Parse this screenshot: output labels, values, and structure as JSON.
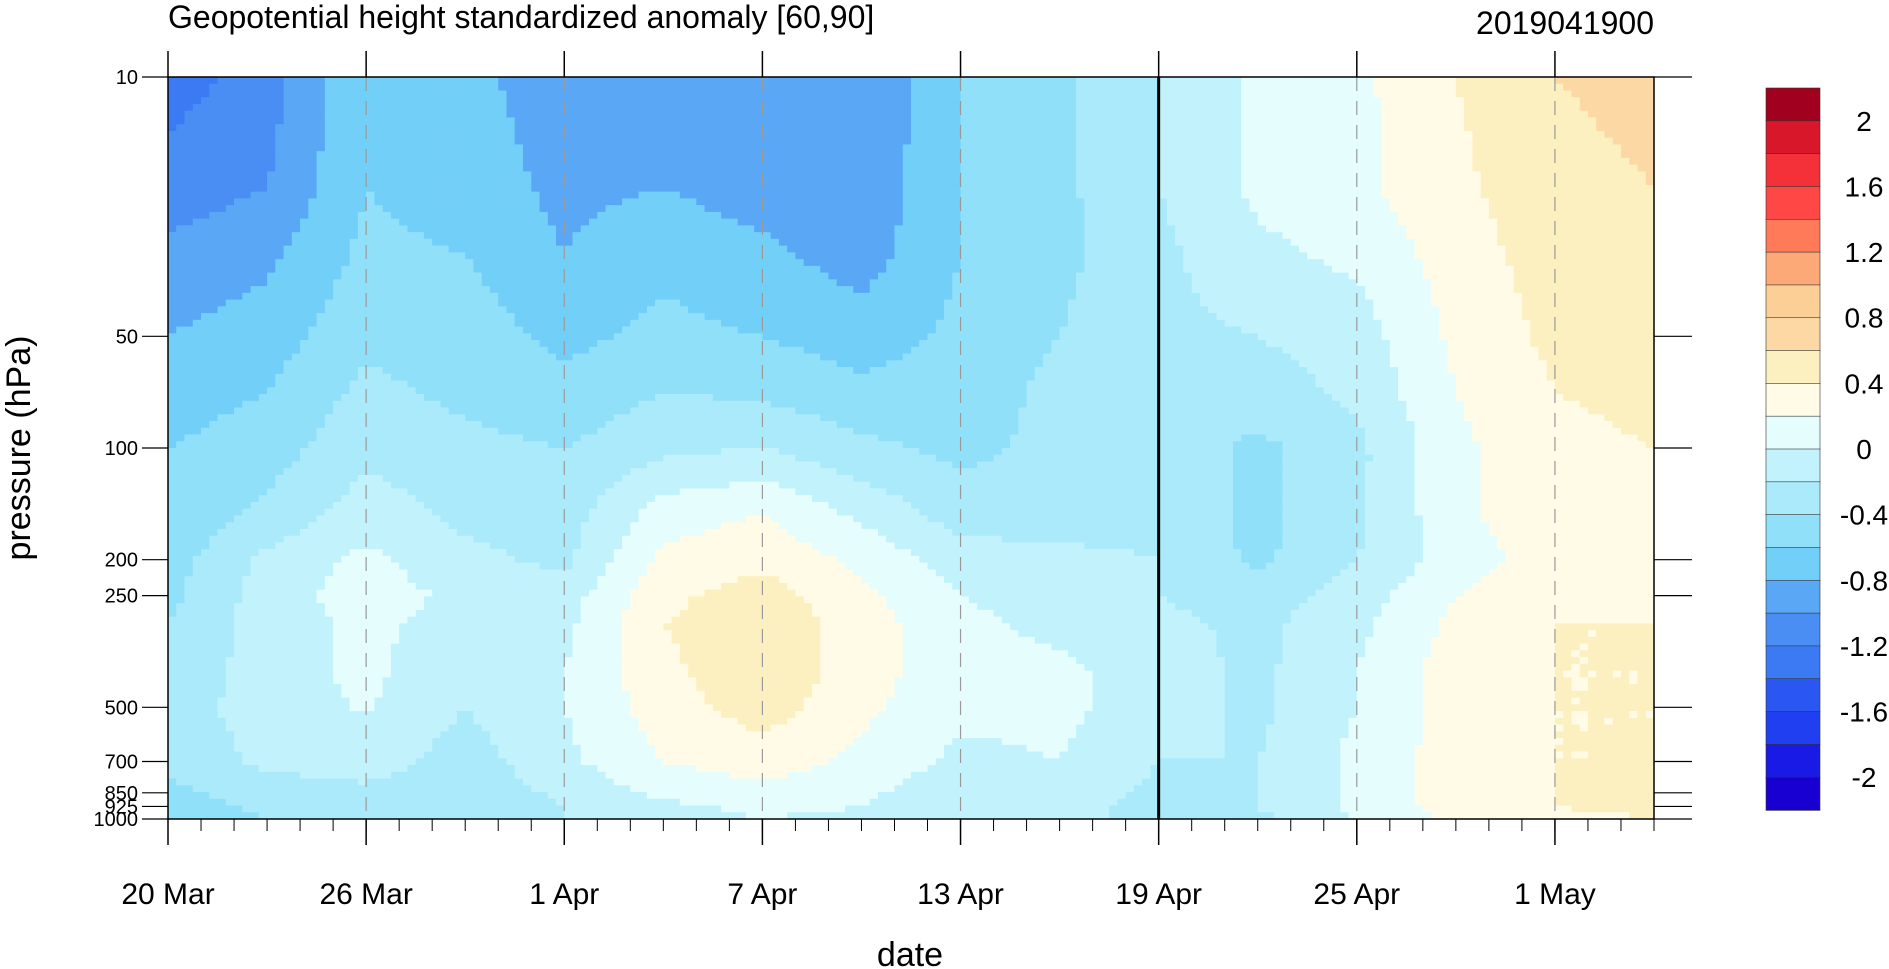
{
  "chart_data": {
    "type": "heatmap",
    "title": "Geopotential height standardized anomaly [60,90]",
    "subtitle": "2019041900",
    "xlabel": "date",
    "ylabel": "pressure (hPa)",
    "y_scale": "log",
    "y_reversed": true,
    "ylim": [
      1000,
      10
    ],
    "xlim": [
      "2019-03-20",
      "2019-05-04"
    ],
    "x_tick_labels": [
      "20 Mar",
      "26 Mar",
      "1 Apr",
      "7 Apr",
      "13 Apr",
      "19 Apr",
      "25 Apr",
      "1 May"
    ],
    "x_tick_dates": [
      "2019-03-20",
      "2019-03-26",
      "2019-04-01",
      "2019-04-07",
      "2019-04-13",
      "2019-04-19",
      "2019-04-25",
      "2019-05-01"
    ],
    "y_ticks": [
      10,
      50,
      100,
      200,
      250,
      500,
      700,
      850,
      925,
      1000
    ],
    "y_tick_labels": [
      "10",
      "50",
      "100",
      "200",
      "250",
      "500",
      "700",
      "850",
      "925",
      "1000"
    ],
    "analysis_date": "2019-04-19",
    "dashed_gridlines_x": [
      "2019-03-26",
      "2019-04-01",
      "2019-04-07",
      "2019-04-13",
      "2019-04-25",
      "2019-05-01"
    ],
    "pressure_levels": [
      10,
      20,
      30,
      50,
      70,
      100,
      150,
      200,
      250,
      300,
      400,
      500,
      700,
      850,
      925,
      1000
    ],
    "dates": [
      "2019-03-20",
      "2019-03-23",
      "2019-03-26",
      "2019-03-29",
      "2019-04-01",
      "2019-04-04",
      "2019-04-07",
      "2019-04-10",
      "2019-04-13",
      "2019-04-16",
      "2019-04-19",
      "2019-04-22",
      "2019-04-25",
      "2019-04-28",
      "2019-05-01",
      "2019-05-04"
    ],
    "values": [
      [
        -1.3,
        -1.1,
        -0.6,
        -0.75,
        -0.9,
        -0.85,
        -0.9,
        -1.0,
        -0.6,
        -0.45,
        -0.2,
        0.05,
        0.15,
        0.4,
        0.6,
        0.65
      ],
      [
        -1.1,
        -1.0,
        -0.6,
        -0.7,
        -0.85,
        -0.8,
        -0.9,
        -0.95,
        -0.6,
        -0.45,
        -0.2,
        0.05,
        0.15,
        0.35,
        0.55,
        0.6
      ],
      [
        -0.95,
        -0.85,
        -0.55,
        -0.6,
        -0.8,
        -0.65,
        -0.75,
        -0.9,
        -0.6,
        -0.45,
        -0.25,
        -0.05,
        0.05,
        0.3,
        0.5,
        0.6
      ],
      [
        -0.8,
        -0.7,
        -0.45,
        -0.5,
        -0.65,
        -0.55,
        -0.6,
        -0.7,
        -0.55,
        -0.4,
        -0.25,
        -0.2,
        -0.1,
        0.25,
        0.45,
        0.6
      ],
      [
        -0.7,
        -0.6,
        -0.35,
        -0.45,
        -0.55,
        -0.4,
        -0.45,
        -0.55,
        -0.5,
        -0.35,
        -0.25,
        -0.3,
        -0.15,
        0.2,
        0.4,
        0.45
      ],
      [
        -0.6,
        -0.5,
        -0.25,
        -0.35,
        -0.4,
        -0.25,
        -0.2,
        -0.35,
        -0.45,
        -0.35,
        -0.25,
        -0.45,
        -0.25,
        0.15,
        0.35,
        0.4
      ],
      [
        -0.55,
        -0.35,
        -0.1,
        -0.25,
        -0.3,
        0.1,
        0.2,
        -0.05,
        -0.3,
        -0.3,
        -0.25,
        -0.45,
        -0.25,
        0.15,
        0.35,
        0.4
      ],
      [
        -0.5,
        -0.15,
        0.05,
        -0.15,
        -0.25,
        0.25,
        0.35,
        0.15,
        -0.1,
        -0.15,
        -0.2,
        -0.45,
        -0.2,
        0.1,
        0.3,
        0.35
      ],
      [
        -0.45,
        -0.1,
        0.1,
        -0.05,
        -0.1,
        0.35,
        0.5,
        0.25,
        0.0,
        -0.1,
        -0.2,
        -0.3,
        -0.1,
        0.2,
        0.35,
        0.35
      ],
      [
        -0.4,
        -0.1,
        0.05,
        -0.1,
        -0.05,
        0.4,
        0.55,
        0.3,
        0.05,
        -0.05,
        -0.15,
        -0.25,
        -0.05,
        0.25,
        0.4,
        0.4
      ],
      [
        -0.35,
        -0.1,
        0.05,
        -0.15,
        0.0,
        0.35,
        0.55,
        0.3,
        0.05,
        0.05,
        -0.1,
        -0.25,
        0.0,
        0.3,
        0.4,
        0.4
      ],
      [
        -0.3,
        -0.1,
        0.02,
        -0.2,
        0.0,
        0.3,
        0.5,
        0.25,
        0.05,
        0.05,
        -0.1,
        -0.25,
        0.0,
        0.3,
        0.4,
        0.4
      ],
      [
        -0.35,
        -0.15,
        -0.1,
        -0.3,
        -0.05,
        0.2,
        0.3,
        0.15,
        -0.05,
        0.0,
        -0.2,
        -0.2,
        0.05,
        0.3,
        0.4,
        0.4
      ],
      [
        -0.45,
        -0.3,
        -0.25,
        -0.35,
        -0.15,
        0.05,
        0.15,
        0.05,
        -0.15,
        -0.1,
        -0.25,
        -0.2,
        0.05,
        0.3,
        0.4,
        0.45
      ],
      [
        -0.5,
        -0.35,
        -0.3,
        -0.4,
        -0.2,
        -0.05,
        0.05,
        0.0,
        -0.2,
        -0.15,
        -0.25,
        -0.2,
        0.05,
        0.3,
        0.4,
        0.45
      ],
      [
        -0.5,
        -0.4,
        -0.35,
        -0.4,
        -0.2,
        -0.1,
        0.0,
        -0.05,
        -0.2,
        -0.15,
        -0.25,
        -0.25,
        0.0,
        0.25,
        0.35,
        0.4
      ]
    ],
    "colorbar": {
      "levels": [
        -2.2,
        -2,
        -1.8,
        -1.6,
        -1.4,
        -1.2,
        -1,
        -0.8,
        -0.6,
        -0.4,
        -0.2,
        0,
        0.2,
        0.4,
        0.6,
        0.8,
        1,
        1.2,
        1.4,
        1.6,
        1.8,
        2,
        2.2
      ],
      "colors": [
        "#1800d0",
        "#1a1ae6",
        "#1f3ff0",
        "#2a57f2",
        "#3b7af2",
        "#4a8ef4",
        "#5aa8f5",
        "#72cff8",
        "#91e0fa",
        "#abeafb",
        "#c2f3fc",
        "#e6fdfd",
        "#fffbe6",
        "#fcf0c0",
        "#fcd9a4",
        "#fbcf96",
        "#fca877",
        "#ff7a58",
        "#ff4845",
        "#f43038",
        "#d8172b",
        "#a1001f"
      ],
      "tick_labels": [
        "2",
        "1.6",
        "1.2",
        "0.8",
        "0.4",
        "0",
        "-0.4",
        "-0.8",
        "-1.2",
        "-1.6",
        "-2"
      ]
    }
  }
}
